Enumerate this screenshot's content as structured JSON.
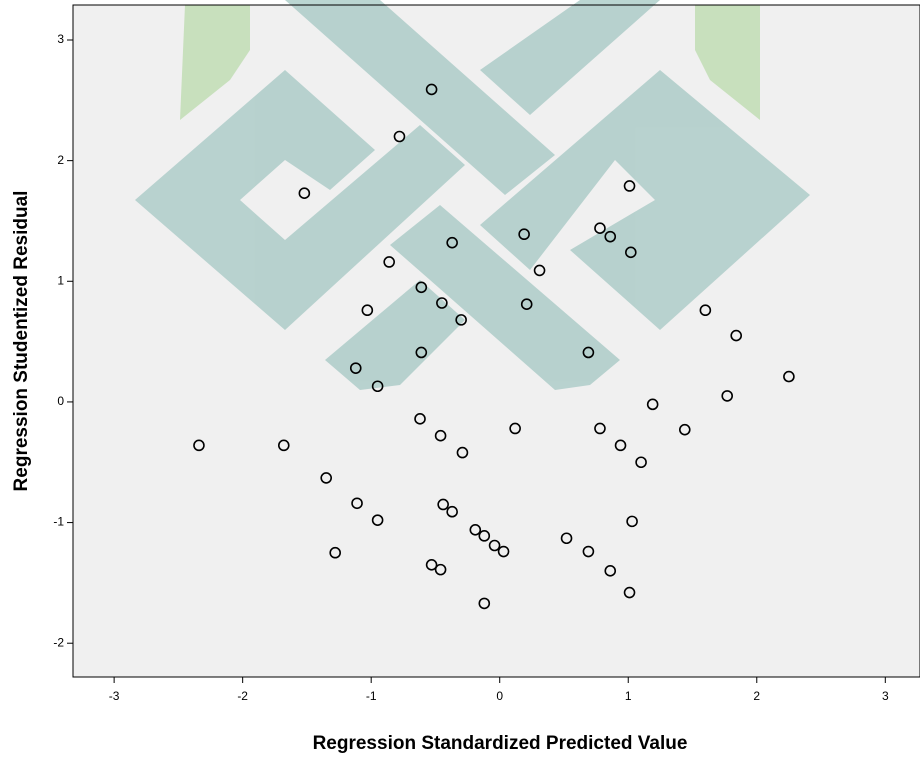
{
  "chart_data": {
    "type": "scatter",
    "x_label": "Regression Standardized Predicted Value",
    "y_label": "Regression Studentized Residual",
    "x": [
      -0.53,
      -0.78,
      -1.52,
      1.01,
      0.19,
      -0.37,
      0.78,
      0.86,
      1.02,
      -0.86,
      0.31,
      -0.61,
      -0.45,
      -1.03,
      0.21,
      -0.3,
      1.6,
      1.84,
      0.69,
      -0.61,
      -1.12,
      -0.95,
      2.25,
      1.77,
      1.19,
      -0.62,
      0.12,
      0.78,
      1.44,
      -2.34,
      -1.68,
      -0.46,
      0.94,
      -0.29,
      1.1,
      -1.35,
      -1.11,
      -0.44,
      -0.37,
      -0.95,
      1.03,
      -0.19,
      -0.12,
      -0.04,
      0.03,
      0.52,
      -1.28,
      0.69,
      -0.53,
      -0.46,
      0.86,
      1.01,
      -0.12
    ],
    "y": [
      2.59,
      2.2,
      1.73,
      1.79,
      1.39,
      1.32,
      1.44,
      1.37,
      1.24,
      1.16,
      1.09,
      0.95,
      0.82,
      0.76,
      0.81,
      0.68,
      0.76,
      0.55,
      0.41,
      0.41,
      0.28,
      0.13,
      0.21,
      0.05,
      -0.02,
      -0.14,
      -0.22,
      -0.22,
      -0.23,
      -0.36,
      -0.36,
      -0.28,
      -0.36,
      -0.42,
      -0.5,
      -0.63,
      -0.84,
      -0.85,
      -0.91,
      -0.98,
      -0.99,
      -1.06,
      -1.11,
      -1.19,
      -1.24,
      -1.13,
      -1.25,
      -1.24,
      -1.35,
      -1.39,
      -1.4,
      -1.58,
      -1.67
    ],
    "color": "#000000",
    "xlim": [
      -3.32,
      3.27
    ],
    "ylim": [
      -2.28,
      3.29
    ],
    "xticks": [
      -3,
      -2,
      -1,
      0,
      1,
      2,
      3
    ],
    "yticks": [
      -2,
      -1,
      0,
      1,
      2,
      3
    ]
  }
}
